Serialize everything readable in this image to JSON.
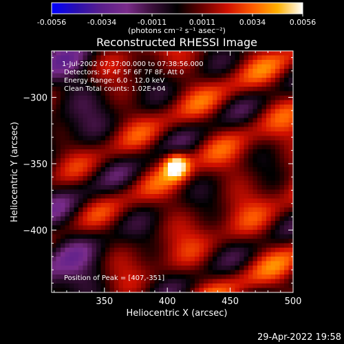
{
  "chart_data": {
    "type": "heatmap",
    "title": "Reconstructed RHESSI Image",
    "xlabel": "Heliocentric X (arcsec)",
    "ylabel": "Heliocentric Y (arcsec)",
    "xlim": [
      308,
      500
    ],
    "ylim": [
      -447,
      -265
    ],
    "xticks": [
      350,
      400,
      450,
      500
    ],
    "yticks": [
      -300,
      -350,
      -400
    ],
    "colorbar": {
      "ticks": [
        "-0.0056",
        "-0.0034",
        "-0.0011",
        "0.0011",
        "0.0034",
        "0.0056"
      ],
      "label": "(photons cm⁻² s⁻¹ asec⁻²)",
      "range": [
        -0.0056,
        0.0056
      ]
    },
    "annotations": [
      "1-Jul-2002 07:37:00.000 to 07:38:56.000",
      "Detectors: 3F 4F 5F 6F 7F 8F, Att 0",
      "Energy Range: 6.0 - 12.0 keV",
      "Clean     Total counts: 1.02E+04",
      "Position of Peak = [407,-351]"
    ],
    "peak": {
      "x": 407,
      "y": -351,
      "value": 0.0056
    },
    "colormap": [
      "#0000ff",
      "#2a0fb0",
      "#5b1f8c",
      "#7a2c8a",
      "#3a0f3a",
      "#000000",
      "#6a0000",
      "#d01000",
      "#ff5a00",
      "#ffb000",
      "#ffffff"
    ]
  },
  "footer": {
    "timestamp": "29-Apr-2022 19:58"
  }
}
